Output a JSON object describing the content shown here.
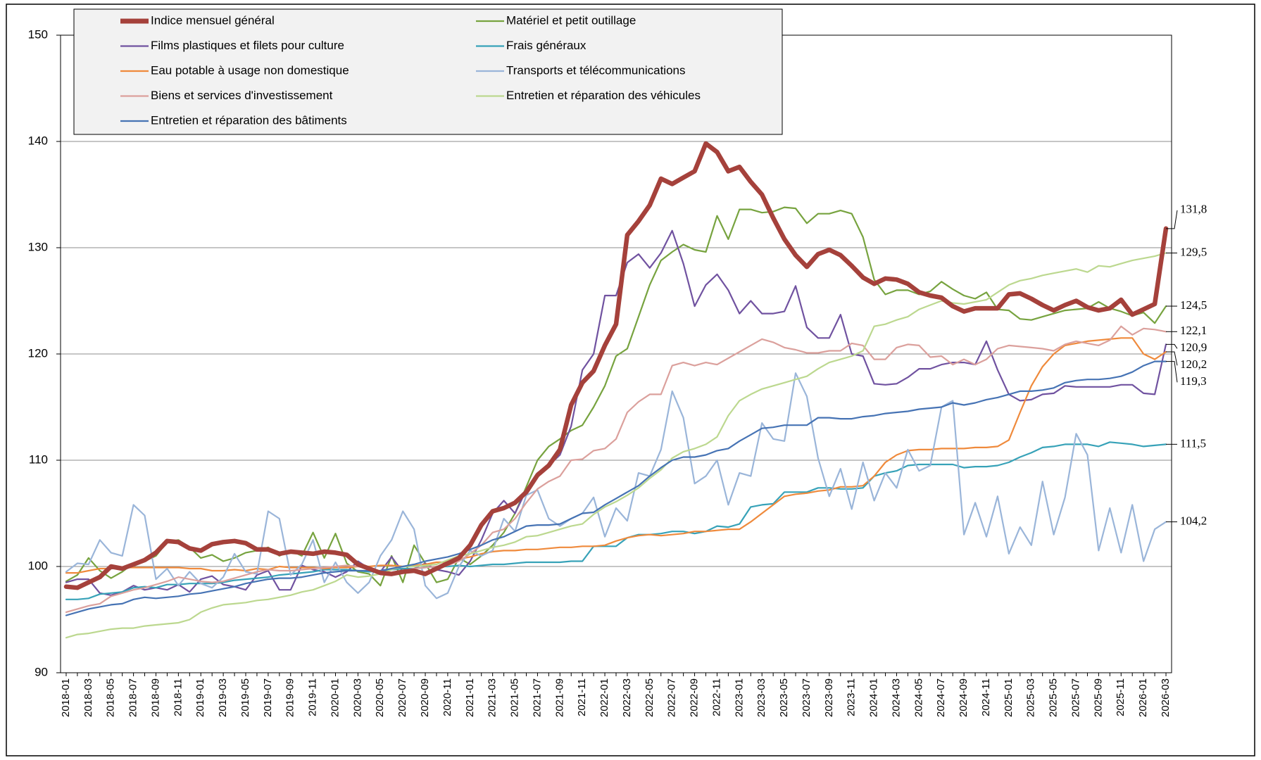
{
  "chart_data": {
    "type": "line",
    "legend": "top-left",
    "grid": true,
    "ylim": [
      90,
      150
    ],
    "yticks": [
      90,
      100,
      110,
      120,
      130,
      140,
      150
    ],
    "categories": [
      "2018-01",
      null,
      "2018-03",
      null,
      "2018-05",
      null,
      "2018-07",
      null,
      "2018-09",
      null,
      "2018-11",
      null,
      "2019-01",
      null,
      "2019-03",
      null,
      "2019-05",
      null,
      "2019-07",
      null,
      "2019-09",
      null,
      "2019-11",
      null,
      "2020-01",
      null,
      "2020-03",
      null,
      "2020-05",
      null,
      "2020-07",
      null,
      "2020-09",
      null,
      "2020-11",
      null,
      "2021-01",
      null,
      "2021-03",
      null,
      "2021-05",
      null,
      "2021-07",
      null,
      "2021-09",
      null,
      "2021-11",
      null,
      "2022-01",
      null,
      "2022-03",
      null,
      "2022-05",
      null,
      "2022-07",
      null,
      "2022-09",
      null,
      "2022-11",
      null,
      "2023-01",
      null,
      "2023-03",
      null,
      "2023-05",
      null,
      "2023-07",
      null,
      "2023-09",
      null,
      "2023-11",
      null,
      "2024-01",
      null,
      "2024-03",
      null,
      "2024-05",
      null,
      "2024-07",
      null,
      "2024-09",
      null,
      "2024-11",
      null,
      "2025-01",
      null,
      "2025-03",
      null,
      "2025-05",
      null,
      "2025-07",
      null,
      "2025-09",
      null,
      "2025-11",
      null,
      "2026-01",
      null,
      "2026-03"
    ],
    "series": [
      {
        "name": "Indice mensuel général",
        "color": "#a5413b",
        "last_label": "131,8",
        "values": [
          98.1,
          98.0,
          98.5,
          99.0,
          100.0,
          99.8,
          100.2,
          100.6,
          101.3,
          102.4,
          102.3,
          101.7,
          101.5,
          102.1,
          102.3,
          102.4,
          102.2,
          101.6,
          101.6,
          101.2,
          101.4,
          101.3,
          101.2,
          101.4,
          101.3,
          101.1,
          100.2,
          99.8,
          99.4,
          99.3,
          99.5,
          99.6,
          99.3,
          99.8,
          100.3,
          100.8,
          102.0,
          103.9,
          105.2,
          105.5,
          106.0,
          107.0,
          108.6,
          109.5,
          111.0,
          115.2,
          117.3,
          118.4,
          120.8,
          122.8,
          131.2,
          132.5,
          134.0,
          136.5,
          136.0,
          136.6,
          137.2,
          139.8,
          139.0,
          137.2,
          137.6,
          136.2,
          135.0,
          132.8,
          130.8,
          129.3,
          128.2,
          129.4,
          129.8,
          129.3,
          128.3,
          127.2,
          126.6,
          127.1,
          127.0,
          126.6,
          125.8,
          125.5,
          125.3,
          124.5,
          124.0,
          124.3,
          124.3,
          124.3,
          125.6,
          125.7,
          125.2,
          124.6,
          124.1,
          124.6,
          125.0,
          124.4,
          124.1,
          124.3,
          125.1,
          123.7,
          124.2,
          124.7,
          131.8
        ]
      },
      {
        "name": "Matériel et petit outillage",
        "color": "#77a33f",
        "last_label": "124,5",
        "values": [
          98.6,
          99.2,
          100.8,
          99.6,
          98.9,
          99.5,
          100.3,
          100.5,
          101.0,
          102.3,
          102.5,
          101.8,
          100.8,
          101.1,
          100.5,
          100.8,
          101.3,
          101.5,
          101.8,
          101.0,
          101.5,
          101.0,
          103.2,
          100.8,
          103.1,
          100.3,
          99.5,
          99.3,
          98.2,
          101.0,
          98.5,
          102.0,
          100.3,
          98.5,
          98.8,
          100.8,
          100.2,
          101.0,
          102.0,
          103.2,
          105.0,
          107.5,
          110.0,
          111.3,
          112.0,
          112.8,
          113.3,
          115.0,
          117.0,
          119.8,
          120.5,
          123.5,
          126.5,
          128.8,
          129.6,
          130.3,
          129.8,
          129.6,
          133.0,
          130.8,
          133.6,
          133.6,
          133.3,
          133.4,
          133.8,
          133.7,
          132.3,
          133.2,
          133.2,
          133.5,
          133.2,
          131.0,
          127.0,
          125.6,
          126.0,
          126.0,
          125.6,
          125.9,
          126.8,
          126.1,
          125.5,
          125.2,
          125.8,
          124.2,
          124.1,
          123.3,
          123.2,
          123.5,
          123.8,
          124.1,
          124.2,
          124.3,
          124.9,
          124.3,
          124.0,
          123.6,
          123.9,
          122.9,
          124.5
        ]
      },
      {
        "name": "Films plastiques et filets pour culture",
        "color": "#7052a0",
        "last_label": "120,9",
        "values": [
          98.5,
          98.8,
          98.8,
          97.5,
          97.3,
          97.6,
          98.2,
          97.8,
          98.0,
          97.8,
          98.3,
          97.6,
          98.8,
          99.1,
          98.3,
          98.1,
          97.8,
          99.2,
          99.6,
          97.8,
          97.8,
          100.1,
          99.7,
          99.5,
          99.0,
          99.5,
          100.5,
          99.8,
          99.5,
          100.9,
          99.5,
          99.8,
          100.3,
          99.7,
          99.5,
          99.2,
          100.5,
          102.5,
          105.0,
          106.2,
          105.0,
          107.2,
          108.8,
          109.5,
          110.5,
          113.2,
          118.5,
          120.0,
          125.5,
          125.5,
          128.6,
          129.4,
          128.1,
          129.5,
          131.6,
          128.5,
          124.5,
          126.5,
          127.5,
          126.0,
          123.8,
          125.0,
          123.8,
          123.8,
          124.0,
          126.4,
          122.5,
          121.5,
          121.5,
          123.7,
          120.0,
          119.8,
          117.2,
          117.1,
          117.2,
          117.8,
          118.6,
          118.6,
          119.0,
          119.2,
          119.2,
          119.0,
          121.2,
          118.5,
          116.2,
          115.6,
          115.7,
          116.2,
          116.3,
          117.0,
          116.9,
          116.9,
          116.9,
          116.9,
          117.1,
          117.1,
          116.3,
          116.2,
          120.9
        ]
      },
      {
        "name": "Frais généraux",
        "color": "#37a2b8",
        "last_label": "111,5",
        "values": [
          96.9,
          96.9,
          97.0,
          97.4,
          97.5,
          97.6,
          98.0,
          98.1,
          98.0,
          98.3,
          98.3,
          98.4,
          98.4,
          98.4,
          98.5,
          98.7,
          98.8,
          98.9,
          99.0,
          99.2,
          99.3,
          99.4,
          99.5,
          99.7,
          99.7,
          99.7,
          99.6,
          99.5,
          99.6,
          99.7,
          99.8,
          99.8,
          99.9,
          100.0,
          100.0,
          100.1,
          100.0,
          100.1,
          100.2,
          100.2,
          100.3,
          100.4,
          100.4,
          100.4,
          100.4,
          100.5,
          100.5,
          101.9,
          101.9,
          101.9,
          102.7,
          103.0,
          103.0,
          103.1,
          103.3,
          103.3,
          103.1,
          103.3,
          103.8,
          103.7,
          104.0,
          105.6,
          105.8,
          105.9,
          107.0,
          107.0,
          107.0,
          107.4,
          107.4,
          107.3,
          107.3,
          107.4,
          108.5,
          108.8,
          109.0,
          109.5,
          109.6,
          109.6,
          109.6,
          109.6,
          109.3,
          109.4,
          109.4,
          109.5,
          109.8,
          110.3,
          110.7,
          111.2,
          111.3,
          111.5,
          111.5,
          111.5,
          111.3,
          111.7,
          111.6,
          111.5,
          111.3,
          111.4,
          111.5
        ]
      },
      {
        "name": "Eau potable à  usage non domestique",
        "color": "#ef8a3c",
        "last_label": "120,2",
        "values": [
          99.4,
          99.4,
          99.6,
          99.8,
          99.8,
          99.9,
          99.9,
          99.9,
          99.9,
          99.9,
          99.9,
          99.8,
          99.8,
          99.6,
          99.6,
          99.7,
          99.6,
          99.8,
          99.7,
          100.0,
          99.9,
          99.9,
          99.9,
          99.8,
          99.9,
          99.9,
          100.0,
          100.0,
          100.1,
          100.1,
          100.0,
          100.1,
          100.2,
          100.4,
          100.4,
          100.7,
          100.9,
          101.2,
          101.4,
          101.5,
          101.5,
          101.6,
          101.6,
          101.7,
          101.8,
          101.8,
          101.9,
          101.9,
          102.0,
          102.4,
          102.7,
          102.9,
          103.0,
          102.9,
          103.0,
          103.1,
          103.3,
          103.3,
          103.4,
          103.5,
          103.5,
          104.2,
          105.0,
          105.8,
          106.6,
          106.8,
          106.9,
          107.1,
          107.2,
          107.5,
          107.5,
          107.6,
          108.5,
          109.8,
          110.5,
          110.9,
          111.0,
          111.0,
          111.1,
          111.1,
          111.1,
          111.2,
          111.2,
          111.3,
          111.9,
          114.5,
          117.0,
          118.8,
          120.0,
          120.8,
          121.0,
          121.2,
          121.3,
          121.4,
          121.5,
          121.5,
          120.0,
          119.5,
          120.2
        ]
      },
      {
        "name": "Transports et télécommunications",
        "color": "#9ab5d9",
        "last_label": "104,2",
        "values": [
          99.5,
          100.3,
          100.2,
          102.5,
          101.3,
          101.0,
          105.8,
          104.8,
          98.8,
          99.8,
          98.2,
          99.5,
          98.4,
          98.0,
          99.0,
          101.2,
          99.5,
          99.3,
          105.2,
          104.5,
          99.2,
          100.2,
          102.5,
          98.5,
          100.4,
          98.5,
          97.5,
          98.5,
          101.0,
          102.5,
          105.2,
          103.5,
          98.2,
          97.0,
          97.5,
          100.0,
          101.5,
          101.0,
          101.5,
          104.5,
          103.3,
          106.7,
          107.2,
          104.5,
          103.8,
          104.5,
          105.0,
          106.5,
          102.8,
          105.5,
          104.3,
          108.8,
          108.5,
          111.0,
          116.5,
          114.0,
          107.8,
          108.5,
          110.0,
          105.8,
          108.8,
          108.5,
          113.5,
          112.0,
          111.8,
          118.2,
          116.0,
          110.2,
          106.6,
          109.2,
          105.4,
          109.8,
          106.2,
          108.8,
          107.4,
          111.0,
          109.0,
          109.5,
          115.0,
          115.6,
          103.0,
          106.0,
          102.8,
          106.6,
          101.2,
          103.7,
          102.0,
          108.0,
          103.0,
          106.5,
          112.5,
          110.5,
          101.5,
          105.5,
          101.3,
          105.8,
          100.5,
          103.5,
          104.2
        ]
      },
      {
        "name": "Biens et services d'investissement",
        "color": "#dba09c",
        "last_label": "122,1",
        "values": [
          95.7,
          96.0,
          96.3,
          96.5,
          97.2,
          97.5,
          97.8,
          98.0,
          98.3,
          98.6,
          99.0,
          98.8,
          98.6,
          98.5,
          98.6,
          98.9,
          99.2,
          99.5,
          99.7,
          99.6,
          99.6,
          99.7,
          99.8,
          99.9,
          100.0,
          100.1,
          100.0,
          99.8,
          99.5,
          99.4,
          99.6,
          99.8,
          99.9,
          100.0,
          100.1,
          100.5,
          101.2,
          102.0,
          103.2,
          103.5,
          104.5,
          106.0,
          107.3,
          108.0,
          108.5,
          110.0,
          110.1,
          110.9,
          111.1,
          112.0,
          114.5,
          115.5,
          116.2,
          116.2,
          118.9,
          119.2,
          118.9,
          119.2,
          119.0,
          119.6,
          120.2,
          120.8,
          121.4,
          121.1,
          120.6,
          120.4,
          120.1,
          120.1,
          120.3,
          120.3,
          121.0,
          120.8,
          119.5,
          119.5,
          120.6,
          120.9,
          120.8,
          119.7,
          119.8,
          119.0,
          119.5,
          119.0,
          119.5,
          120.5,
          120.8,
          120.7,
          120.6,
          120.5,
          120.3,
          120.9,
          121.2,
          121.0,
          120.8,
          121.3,
          122.6,
          121.8,
          122.4,
          122.3,
          122.1
        ]
      },
      {
        "name": "Entretien et réparation des véhicules",
        "color": "#bcd88f",
        "last_label": "129,5",
        "values": [
          93.3,
          93.6,
          93.7,
          93.9,
          94.1,
          94.2,
          94.2,
          94.4,
          94.5,
          94.6,
          94.7,
          95.0,
          95.7,
          96.1,
          96.4,
          96.5,
          96.6,
          96.8,
          96.9,
          97.1,
          97.3,
          97.6,
          97.8,
          98.2,
          98.6,
          99.2,
          99.0,
          99.1,
          99.3,
          99.7,
          100.0,
          100.0,
          100.1,
          100.2,
          100.6,
          101.0,
          101.2,
          101.5,
          101.8,
          102.0,
          102.3,
          102.8,
          102.9,
          103.2,
          103.5,
          103.8,
          104.0,
          104.9,
          105.6,
          106.1,
          106.7,
          107.4,
          108.3,
          109.1,
          110.2,
          110.8,
          111.1,
          111.5,
          112.2,
          114.2,
          115.6,
          116.2,
          116.7,
          117.0,
          117.3,
          117.6,
          117.9,
          118.6,
          119.2,
          119.5,
          119.8,
          120.3,
          122.6,
          122.8,
          123.2,
          123.5,
          124.2,
          124.6,
          125.0,
          124.8,
          124.7,
          124.9,
          125.1,
          125.8,
          126.5,
          126.9,
          127.1,
          127.4,
          127.6,
          127.8,
          128.0,
          127.7,
          128.3,
          128.2,
          128.5,
          128.8,
          129.0,
          129.2,
          129.5
        ]
      },
      {
        "name": "Entretien et réparation des bâtiments",
        "color": "#4673b4",
        "last_label": "119,3",
        "values": [
          95.4,
          95.7,
          96.0,
          96.2,
          96.4,
          96.5,
          96.9,
          97.1,
          97.0,
          97.1,
          97.2,
          97.4,
          97.5,
          97.7,
          97.9,
          98.1,
          98.4,
          98.6,
          98.8,
          98.9,
          98.9,
          99.0,
          99.2,
          99.4,
          99.5,
          99.6,
          99.6,
          99.6,
          99.6,
          99.8,
          100.0,
          100.2,
          100.5,
          100.7,
          100.9,
          101.2,
          101.6,
          102.0,
          102.5,
          102.8,
          103.3,
          103.8,
          103.9,
          103.9,
          104.0,
          104.5,
          105.0,
          105.1,
          105.8,
          106.4,
          107.0,
          107.6,
          108.5,
          109.3,
          110.0,
          110.3,
          110.3,
          110.5,
          110.9,
          111.1,
          111.8,
          112.4,
          113.0,
          113.1,
          113.3,
          113.3,
          113.3,
          114.0,
          114.0,
          113.9,
          113.9,
          114.1,
          114.2,
          114.4,
          114.5,
          114.6,
          114.8,
          114.9,
          115.0,
          115.4,
          115.2,
          115.4,
          115.7,
          115.9,
          116.2,
          116.5,
          116.5,
          116.6,
          116.8,
          117.3,
          117.5,
          117.6,
          117.6,
          117.7,
          117.9,
          118.3,
          118.9,
          119.3,
          119.3
        ]
      }
    ]
  }
}
